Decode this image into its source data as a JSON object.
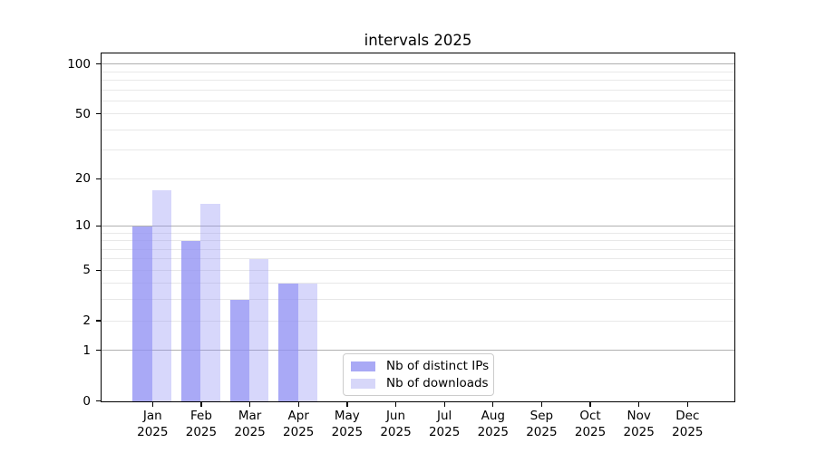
{
  "title": "intervals 2025",
  "chart_data": {
    "type": "bar",
    "title": "intervals 2025",
    "categories": [
      "Jan",
      "Feb",
      "Mar",
      "Apr",
      "May",
      "Jun",
      "Jul",
      "Aug",
      "Sep",
      "Oct",
      "Nov",
      "Dec"
    ],
    "category_year": "2025",
    "series": [
      {
        "name": "Nb of distinct IPs",
        "color": "#a9a9f5",
        "fill": "rgba(145,145,243,0.78)",
        "values": [
          10,
          8,
          3,
          4,
          0,
          0,
          0,
          0,
          0,
          0,
          0,
          0
        ]
      },
      {
        "name": "Nb of downloads",
        "color": "#d7d7f9",
        "fill": "rgba(145,145,243,0.36)",
        "values": [
          17,
          14,
          6,
          4,
          0,
          0,
          0,
          0,
          0,
          0,
          0,
          0
        ]
      }
    ],
    "yscale": "log1p",
    "ylim": [
      0,
      115
    ],
    "yticks": [
      0,
      1,
      2,
      5,
      10,
      20,
      50,
      100
    ],
    "grid_major": [
      1,
      10,
      100
    ],
    "grid_minor": [
      2,
      3,
      4,
      5,
      6,
      7,
      8,
      9,
      20,
      30,
      40,
      50,
      60,
      70,
      80,
      90
    ],
    "grid": "on",
    "legend_position": "lower center",
    "colors": {
      "grid_major": "#b0b0b0",
      "grid_minor": "#e8e8e8",
      "axis": "#000000",
      "legend_border": "#cccccc",
      "background": "#ffffff"
    }
  }
}
